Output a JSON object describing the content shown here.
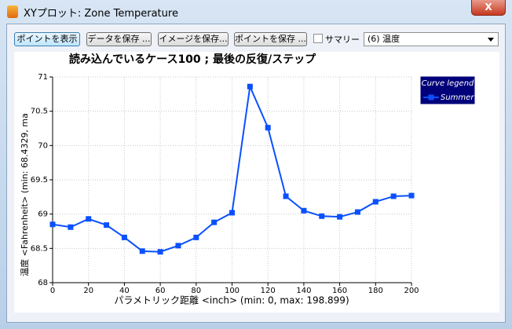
{
  "window": {
    "title": "XYプロット: Zone Temperature"
  },
  "toolbar": {
    "buttons": [
      "ポイントを表示",
      "データを保存 ...",
      "イメージを保存...",
      "ポイントを保存 ..."
    ],
    "checkbox": "サマリー",
    "select": "(6) 温度"
  },
  "chart_data": {
    "type": "line",
    "title": "読み込んでいるケース100 ; 最後の反復/ステップ",
    "x_label": "パラメトリック距離 <inch> (min: 0, max: 198.899)",
    "y_label": "温度 <Fahrenheit> (min: 68.4329, ma",
    "x": [
      0,
      10,
      20,
      30,
      40,
      50,
      60,
      70,
      80,
      90,
      100,
      110,
      120,
      130,
      140,
      150,
      160,
      170,
      180,
      190,
      200
    ],
    "series": [
      {
        "name": "Summer",
        "color": "#0a50ff",
        "values": [
          68.85,
          68.81,
          68.93,
          68.84,
          68.66,
          68.46,
          68.45,
          68.54,
          68.66,
          68.88,
          69.02,
          70.86,
          70.26,
          69.26,
          69.05,
          68.97,
          68.96,
          69.03,
          69.18,
          69.26,
          69.27
        ]
      }
    ],
    "xlim": [
      0,
      200
    ],
    "ylim": [
      68,
      71
    ],
    "xticks": [
      0,
      20,
      40,
      60,
      80,
      100,
      120,
      140,
      160,
      180,
      200
    ],
    "yticks": [
      68,
      68.5,
      69,
      69.5,
      70,
      70.5,
      71
    ],
    "grid": true,
    "legend_title": "Curve legend",
    "legend": "upper right"
  }
}
